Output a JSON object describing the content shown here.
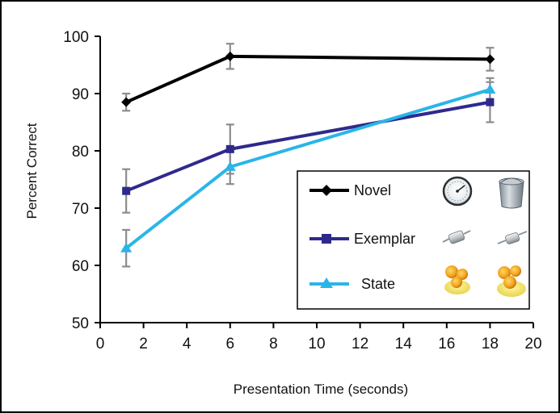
{
  "chart_data": {
    "type": "line",
    "title": "",
    "xlabel": "Presentation Time (seconds)",
    "ylabel": "Percent Correct",
    "xlim": [
      0,
      20
    ],
    "ylim": [
      50,
      100
    ],
    "xticks": [
      0,
      2,
      4,
      6,
      8,
      10,
      12,
      14,
      16,
      18,
      20
    ],
    "yticks": [
      50,
      60,
      70,
      80,
      90,
      100
    ],
    "x": [
      1.2,
      6,
      18
    ],
    "grid": false,
    "legend_position": "center-right",
    "series": [
      {
        "name": "Novel",
        "color": "#000000",
        "marker": "diamond",
        "values": [
          88.5,
          96.5,
          96.0
        ],
        "error": [
          1.5,
          2.2,
          2.0
        ]
      },
      {
        "name": "Exemplar",
        "color": "#2e2a8c",
        "marker": "square",
        "values": [
          73.0,
          80.3,
          88.5
        ],
        "error": [
          3.8,
          4.3,
          3.5
        ]
      },
      {
        "name": "State",
        "color": "#2ab5e8",
        "marker": "triangle",
        "values": [
          63.0,
          77.2,
          90.7
        ],
        "error": [
          3.2,
          3.0,
          2.0
        ]
      }
    ]
  }
}
